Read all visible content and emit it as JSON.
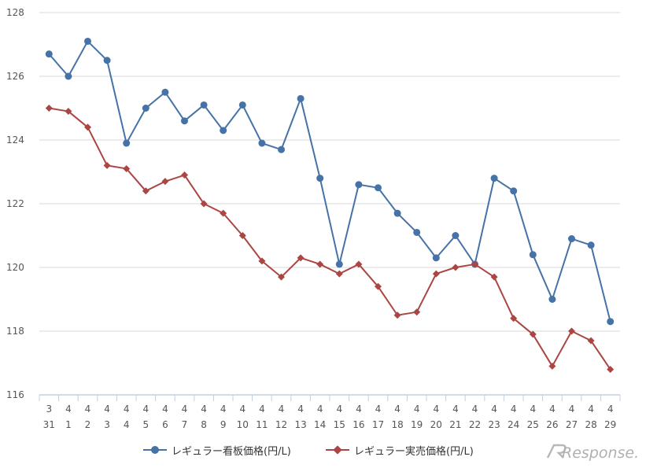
{
  "chart_data": {
    "type": "line",
    "categories": [
      {
        "month": "3",
        "day": "31"
      },
      {
        "month": "4",
        "day": "1"
      },
      {
        "month": "4",
        "day": "2"
      },
      {
        "month": "4",
        "day": "3"
      },
      {
        "month": "4",
        "day": "4"
      },
      {
        "month": "4",
        "day": "5"
      },
      {
        "month": "4",
        "day": "6"
      },
      {
        "month": "4",
        "day": "7"
      },
      {
        "month": "4",
        "day": "8"
      },
      {
        "month": "4",
        "day": "9"
      },
      {
        "month": "4",
        "day": "10"
      },
      {
        "month": "4",
        "day": "11"
      },
      {
        "month": "4",
        "day": "12"
      },
      {
        "month": "4",
        "day": "13"
      },
      {
        "month": "4",
        "day": "14"
      },
      {
        "month": "4",
        "day": "15"
      },
      {
        "month": "4",
        "day": "16"
      },
      {
        "month": "4",
        "day": "17"
      },
      {
        "month": "4",
        "day": "18"
      },
      {
        "month": "4",
        "day": "19"
      },
      {
        "month": "4",
        "day": "20"
      },
      {
        "month": "4",
        "day": "21"
      },
      {
        "month": "4",
        "day": "22"
      },
      {
        "month": "4",
        "day": "23"
      },
      {
        "month": "4",
        "day": "24"
      },
      {
        "month": "4",
        "day": "25"
      },
      {
        "month": "4",
        "day": "26"
      },
      {
        "month": "4",
        "day": "27"
      },
      {
        "month": "4",
        "day": "28"
      },
      {
        "month": "4",
        "day": "29"
      }
    ],
    "series": [
      {
        "name": "レギュラー看板価格(円/L)",
        "color": "#4572a7",
        "marker": "circle",
        "values": [
          126.7,
          126.0,
          127.1,
          126.5,
          123.9,
          125.0,
          125.5,
          124.6,
          125.1,
          124.3,
          125.1,
          123.9,
          123.7,
          125.3,
          122.8,
          120.1,
          122.6,
          122.5,
          121.7,
          121.1,
          120.3,
          121.0,
          120.1,
          122.8,
          122.4,
          120.4,
          119.0,
          120.9,
          120.7,
          118.3
        ]
      },
      {
        "name": "レギュラー実売価格(円/L)",
        "color": "#aa4643",
        "marker": "diamond",
        "values": [
          125.0,
          124.9,
          124.4,
          123.2,
          123.1,
          122.4,
          122.7,
          122.9,
          122.0,
          121.7,
          121.0,
          120.2,
          119.7,
          120.3,
          120.1,
          119.8,
          120.1,
          119.4,
          118.5,
          118.6,
          119.8,
          120.0,
          120.1,
          119.7,
          118.4,
          117.9,
          116.9,
          118.0,
          117.7,
          116.8
        ]
      }
    ],
    "ylim": [
      116,
      128
    ],
    "yticks": [
      "116",
      "118",
      "120",
      "122",
      "124",
      "126",
      "128"
    ],
    "grid": true,
    "legend_position": "bottom-center"
  },
  "watermark": {
    "text": "Response."
  },
  "colors": {
    "grid": "#d8d8d8",
    "axis": "#c0d0e0",
    "tick_text": "#555555"
  }
}
